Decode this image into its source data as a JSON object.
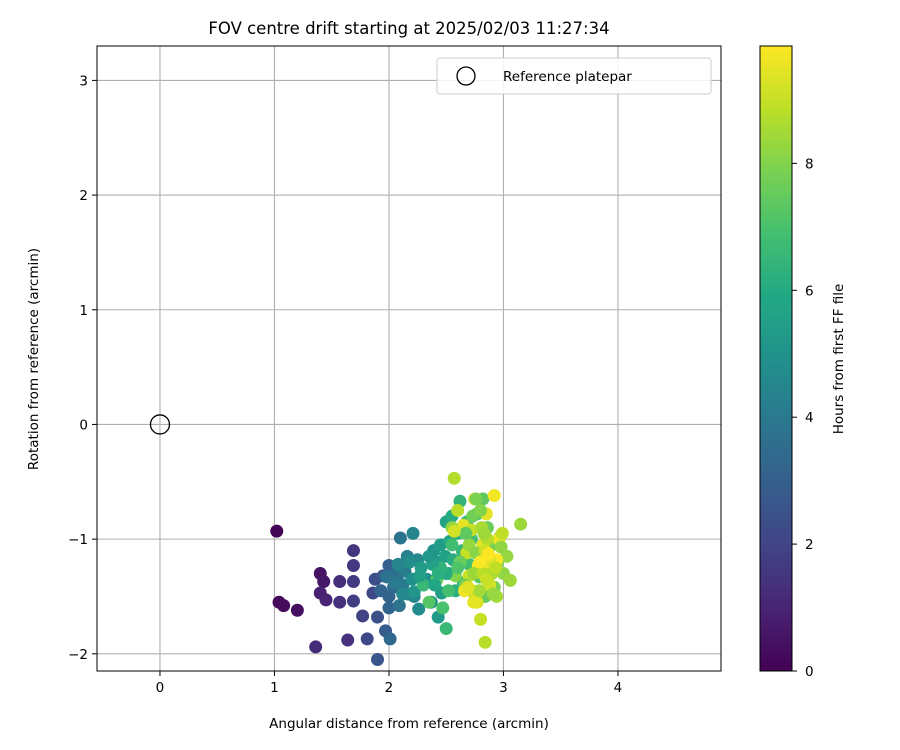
{
  "chart_data": {
    "type": "scatter",
    "title": "FOV centre drift starting at 2025/02/03 11:27:34",
    "xlabel": "Angular distance from reference (arcmin)",
    "ylabel": "Rotation from reference (arcmin)",
    "xlim": [
      -0.55,
      4.9
    ],
    "ylim": [
      -2.15,
      3.3
    ],
    "xticks": [
      0,
      1,
      2,
      3,
      4
    ],
    "yticks": [
      -2,
      -1,
      0,
      1,
      2,
      3
    ],
    "grid": true,
    "legend": {
      "location": "top-right",
      "entries": [
        "Reference platepar"
      ]
    },
    "reference_point": {
      "name": "Reference platepar",
      "x": 0,
      "y": 0,
      "marker": "open-circle"
    },
    "colorbar": {
      "label": "Hours from first FF file",
      "range": [
        0,
        9.85
      ],
      "ticks": [
        0,
        2,
        4,
        6,
        8
      ],
      "colormap": "viridis"
    },
    "series": [
      {
        "points": [
          [
            1.02,
            -0.93,
            0.1
          ],
          [
            1.04,
            -1.55,
            0.2
          ],
          [
            1.08,
            -1.58,
            0.3
          ],
          [
            1.2,
            -1.62,
            0.4
          ],
          [
            1.4,
            -1.3,
            0.5
          ],
          [
            1.43,
            -1.37,
            0.6
          ],
          [
            1.4,
            -1.47,
            0.9
          ],
          [
            1.45,
            -1.53,
            1.0
          ],
          [
            1.36,
            -1.94,
            1.2
          ],
          [
            1.57,
            -1.37,
            1.3
          ],
          [
            1.57,
            -1.55,
            1.4
          ],
          [
            1.64,
            -1.88,
            1.4
          ],
          [
            1.69,
            -1.1,
            1.5
          ],
          [
            1.69,
            -1.23,
            1.6
          ],
          [
            1.69,
            -1.37,
            1.7
          ],
          [
            1.69,
            -1.54,
            1.8
          ],
          [
            1.77,
            -1.67,
            1.9
          ],
          [
            1.81,
            -1.87,
            2.1
          ],
          [
            1.86,
            -1.47,
            2.2
          ],
          [
            1.88,
            -1.35,
            2.3
          ],
          [
            1.9,
            -1.68,
            2.4
          ],
          [
            1.9,
            -2.05,
            2.6
          ],
          [
            1.95,
            -1.32,
            2.7
          ],
          [
            1.97,
            -1.8,
            2.8
          ],
          [
            2.0,
            -1.23,
            3.0
          ],
          [
            2.0,
            -1.5,
            3.1
          ],
          [
            2.0,
            -1.6,
            3.2
          ],
          [
            2.01,
            -1.87,
            3.3
          ],
          [
            2.04,
            -1.42,
            3.4
          ],
          [
            2.06,
            -1.3,
            3.5
          ],
          [
            2.07,
            -1.35,
            3.6
          ],
          [
            2.09,
            -1.58,
            3.7
          ],
          [
            2.1,
            -0.99,
            3.8
          ],
          [
            2.1,
            -1.25,
            3.9
          ],
          [
            2.12,
            -1.4,
            4.0
          ],
          [
            2.14,
            -1.28,
            4.1
          ],
          [
            2.16,
            -1.15,
            4.2
          ],
          [
            2.17,
            -1.48,
            4.3
          ],
          [
            2.21,
            -0.95,
            4.4
          ],
          [
            2.22,
            -1.5,
            4.5
          ],
          [
            2.25,
            -1.18,
            4.6
          ],
          [
            2.26,
            -1.61,
            4.7
          ],
          [
            2.3,
            -1.4,
            4.8
          ],
          [
            2.33,
            -1.35,
            4.9
          ],
          [
            2.37,
            -1.55,
            5.0
          ],
          [
            2.39,
            -1.1,
            5.1
          ],
          [
            2.41,
            -1.2,
            5.2
          ],
          [
            2.43,
            -1.68,
            5.3
          ],
          [
            2.45,
            -1.05,
            5.4
          ],
          [
            2.46,
            -1.47,
            5.5
          ],
          [
            2.49,
            -1.15,
            5.6
          ],
          [
            2.5,
            -0.85,
            5.7
          ],
          [
            2.52,
            -1.3,
            5.8
          ],
          [
            2.53,
            -1.02,
            5.9
          ],
          [
            2.55,
            -0.8,
            6.0
          ],
          [
            2.56,
            -1.18,
            6.1
          ],
          [
            2.58,
            -1.45,
            6.2
          ],
          [
            2.6,
            -0.95,
            6.3
          ],
          [
            2.62,
            -0.67,
            6.4
          ],
          [
            2.64,
            -1.1,
            6.5
          ],
          [
            2.65,
            -1.38,
            6.6
          ],
          [
            2.68,
            -0.85,
            6.7
          ],
          [
            2.7,
            -1.22,
            6.8
          ],
          [
            2.72,
            -1.0,
            6.9
          ],
          [
            2.75,
            -1.48,
            7.0
          ],
          [
            2.77,
            -0.78,
            7.1
          ],
          [
            2.79,
            -1.33,
            7.2
          ],
          [
            2.8,
            -1.15,
            7.3
          ],
          [
            2.82,
            -0.65,
            7.4
          ],
          [
            2.84,
            -1.5,
            7.5
          ],
          [
            2.86,
            -0.9,
            7.6
          ],
          [
            2.88,
            -1.25,
            7.7
          ],
          [
            2.9,
            -1.05,
            7.8
          ],
          [
            2.92,
            -1.42,
            7.9
          ],
          [
            2.95,
            -1.2,
            8.0
          ],
          [
            2.97,
            -0.98,
            8.1
          ],
          [
            3.0,
            -1.3,
            8.2
          ],
          [
            3.03,
            -1.15,
            8.3
          ],
          [
            3.06,
            -1.36,
            8.4
          ],
          [
            3.15,
            -0.87,
            8.4
          ],
          [
            2.94,
            -1.5,
            8.5
          ],
          [
            2.5,
            -1.78,
            6.6
          ],
          [
            2.47,
            -1.6,
            7.0
          ],
          [
            2.22,
            -1.46,
            5.1
          ],
          [
            2.3,
            -1.4,
            6.6
          ],
          [
            2.35,
            -1.55,
            7.2
          ],
          [
            2.42,
            -1.35,
            7.5
          ],
          [
            2.57,
            -0.47,
            8.7
          ],
          [
            2.6,
            -0.75,
            8.8
          ],
          [
            2.63,
            -0.92,
            8.9
          ],
          [
            2.68,
            -1.12,
            9.0
          ],
          [
            2.7,
            -1.32,
            9.1
          ],
          [
            2.73,
            -1.45,
            9.2
          ],
          [
            2.75,
            -0.65,
            9.3
          ],
          [
            2.77,
            -1.55,
            9.3
          ],
          [
            2.8,
            -1.7,
            9.0
          ],
          [
            2.82,
            -1.05,
            9.4
          ],
          [
            2.84,
            -1.9,
            8.8
          ],
          [
            2.85,
            -0.78,
            9.5
          ],
          [
            2.86,
            -1.28,
            9.6
          ],
          [
            2.88,
            -1.4,
            9.2
          ],
          [
            2.92,
            -0.62,
            9.7
          ],
          [
            2.94,
            -1.18,
            9.8
          ],
          [
            2.96,
            -1.0,
            9.6
          ],
          [
            2.99,
            -0.95,
            8.9
          ],
          [
            2.65,
            -0.88,
            9.5
          ],
          [
            2.72,
            -0.92,
            9.0
          ],
          [
            2.78,
            -1.23,
            9.7
          ],
          [
            2.83,
            -1.15,
            9.3
          ],
          [
            2.81,
            -0.9,
            8.6
          ],
          [
            2.86,
            -1.0,
            8.7
          ],
          [
            2.9,
            -1.3,
            8.6
          ],
          [
            2.55,
            -0.9,
            8.2
          ],
          [
            2.58,
            -1.32,
            8.0
          ],
          [
            2.62,
            -1.2,
            7.6
          ],
          [
            2.67,
            -1.4,
            7.9
          ],
          [
            2.7,
            -1.05,
            8.3
          ],
          [
            2.74,
            -1.3,
            8.4
          ],
          [
            2.76,
            -1.12,
            8.1
          ],
          [
            2.79,
            -1.45,
            8.5
          ],
          [
            2.82,
            -1.3,
            8.8
          ],
          [
            2.84,
            -1.1,
            9.1
          ],
          [
            2.88,
            -1.18,
            9.4
          ],
          [
            2.91,
            -1.48,
            8.3
          ],
          [
            2.93,
            -1.25,
            8.9
          ],
          [
            2.98,
            -1.07,
            8.2
          ],
          [
            2.5,
            -1.3,
            6.0
          ],
          [
            2.45,
            -1.25,
            6.4
          ],
          [
            2.4,
            -1.4,
            5.8
          ],
          [
            2.38,
            -1.22,
            5.6
          ],
          [
            2.55,
            -1.05,
            6.8
          ],
          [
            2.6,
            -1.25,
            7.1
          ],
          [
            2.67,
            -0.95,
            7.4
          ],
          [
            2.73,
            -0.8,
            7.7
          ],
          [
            2.76,
            -0.65,
            7.9
          ],
          [
            2.8,
            -0.75,
            8.0
          ],
          [
            2.83,
            -0.95,
            8.4
          ],
          [
            2.57,
            -0.93,
            9.2
          ],
          [
            2.66,
            -1.45,
            9.6
          ],
          [
            2.8,
            -1.2,
            9.8
          ],
          [
            2.87,
            -1.13,
            9.85
          ],
          [
            2.74,
            -1.55,
            9.5
          ],
          [
            2.69,
            -1.42,
            9.4
          ],
          [
            2.85,
            -1.35,
            9.0
          ],
          [
            2.52,
            -1.45,
            6.9
          ],
          [
            2.43,
            -1.3,
            6.2
          ],
          [
            2.35,
            -1.15,
            5.2
          ],
          [
            2.28,
            -1.25,
            5.4
          ],
          [
            2.2,
            -1.35,
            4.9
          ],
          [
            2.12,
            -1.48,
            4.6
          ],
          [
            2.05,
            -1.38,
            4.0
          ],
          [
            1.98,
            -1.33,
            3.7
          ],
          [
            1.93,
            -1.45,
            3.2
          ],
          [
            2.08,
            -1.22,
            4.4
          ],
          [
            2.18,
            -1.2,
            4.8
          ],
          [
            2.27,
            -1.32,
            5.5
          ]
        ]
      }
    ]
  }
}
